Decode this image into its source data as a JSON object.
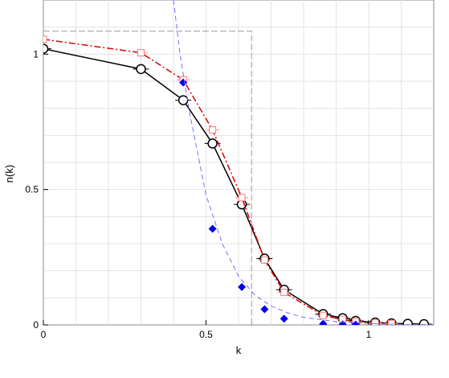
{
  "chart_data": {
    "type": "line",
    "xlabel": "k",
    "ylabel": "n(k)",
    "xlim": [
      0,
      1.2
    ],
    "ylim": [
      0,
      1.2
    ],
    "grid": true,
    "x_ticks": [
      0,
      0.5,
      1
    ],
    "x_tick_labels": [
      "0",
      "0.5",
      "1"
    ],
    "y_ticks": [
      0,
      0.5,
      1
    ],
    "y_tick_labels": [
      "0",
      "0.5",
      "1"
    ],
    "series": [
      {
        "style": "solid-black-open-circles",
        "color": "#000000",
        "points": [
          [
            0,
            1.02
          ],
          [
            0.3,
            0.945
          ],
          [
            0.43,
            0.83
          ],
          [
            0.52,
            0.67
          ],
          [
            0.61,
            0.445
          ],
          [
            0.68,
            0.245
          ],
          [
            0.74,
            0.13
          ],
          [
            0.86,
            0.04
          ],
          [
            0.92,
            0.025
          ],
          [
            0.96,
            0.015
          ],
          [
            1.02,
            0.009
          ],
          [
            1.07,
            0.006
          ],
          [
            1.12,
            0.004
          ],
          [
            1.17,
            0.003
          ]
        ]
      },
      {
        "style": "red-dash-dot-open-squares",
        "color": "#dd0000",
        "points": [
          [
            0,
            1.055
          ],
          [
            0.3,
            1.005
          ],
          [
            0.43,
            0.905
          ],
          [
            0.52,
            0.72
          ],
          [
            0.61,
            0.47
          ],
          [
            0.68,
            0.24
          ],
          [
            0.74,
            0.12
          ],
          [
            0.86,
            0.035
          ],
          [
            0.92,
            0.02
          ],
          [
            0.96,
            0.012
          ],
          [
            1.02,
            0.007
          ],
          [
            1.07,
            0.005
          ]
        ]
      },
      {
        "style": "blue-diamonds",
        "color": "#0000ee",
        "points": [
          [
            0.43,
            0.895
          ],
          [
            0.52,
            0.355
          ],
          [
            0.61,
            0.14
          ],
          [
            0.68,
            0.058
          ],
          [
            0.74,
            0.023
          ],
          [
            0.86,
            0.004
          ],
          [
            0.92,
            0.002
          ],
          [
            0.96,
            0.001
          ]
        ]
      },
      {
        "style": "blue-dashed-curve",
        "color": "#7070ff",
        "points": [
          [
            0.4,
            1.2
          ],
          [
            0.42,
            1.0
          ],
          [
            0.45,
            0.78
          ],
          [
            0.48,
            0.6
          ],
          [
            0.5,
            0.48
          ],
          [
            0.55,
            0.3
          ],
          [
            0.6,
            0.18
          ],
          [
            0.65,
            0.11
          ],
          [
            0.7,
            0.07
          ],
          [
            0.75,
            0.045
          ],
          [
            0.8,
            0.028
          ],
          [
            0.9,
            0.012
          ],
          [
            1.0,
            0.005
          ],
          [
            1.1,
            0.002
          ],
          [
            1.2,
            0.001
          ]
        ]
      },
      {
        "style": "gray-step",
        "color": "#999999",
        "points": [
          [
            0,
            1.085
          ],
          [
            0.64,
            1.085
          ],
          [
            0.64,
            0.0
          ]
        ]
      }
    ]
  }
}
